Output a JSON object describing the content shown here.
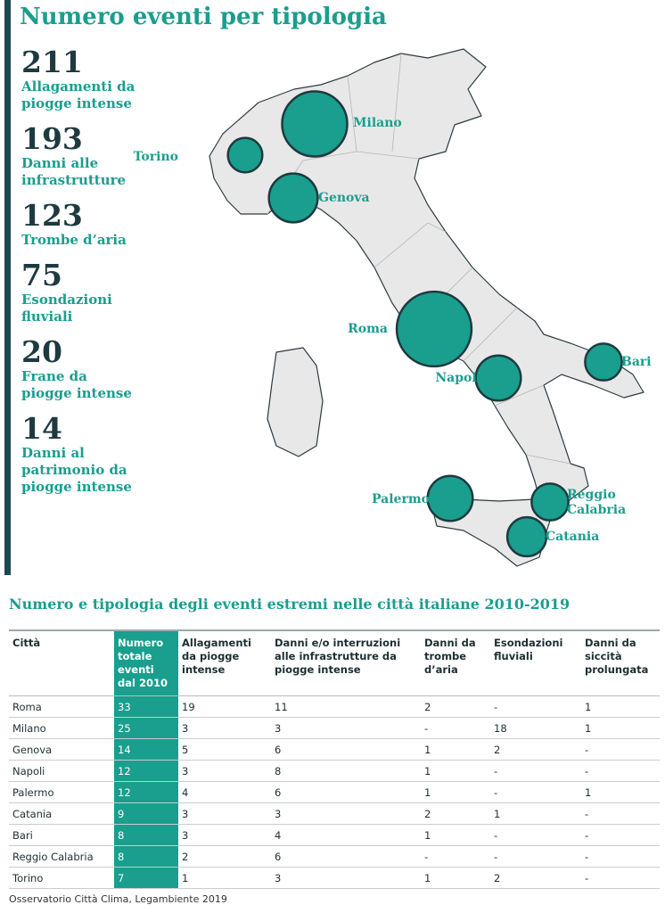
{
  "title": "Numero eventi per tipologia",
  "stats": [
    {
      "value": 211,
      "label": "Allagamenti da piogge intense"
    },
    {
      "value": 193,
      "label": "Danni alle infrastrutture"
    },
    {
      "value": 123,
      "label": "Trombe d’aria"
    },
    {
      "value": 75,
      "label": "Esondazioni fluviali"
    },
    {
      "value": 20,
      "label": "Frane da piogge intense"
    },
    {
      "value": 14,
      "label": "Danni al patrimonio da piogge intense"
    }
  ],
  "map": {
    "cities": [
      "Milano",
      "Torino",
      "Genova",
      "Roma",
      "Napoli",
      "Bari",
      "Palermo",
      "Reggio Calabria",
      "Catania"
    ]
  },
  "table": {
    "title": "Numero e tipologia degli eventi estremi nelle città italiane 2010-2019",
    "header": [
      "Città",
      "Numero totale eventi dal 2010",
      "Allagamenti da piogge intense",
      "Danni e/o interruzioni alle infrastrutture da piogge intense",
      "Danni da trombe d’aria",
      "Esondazioni fluviali",
      "Danni da siccità prolungata"
    ],
    "rows": [
      [
        "Roma",
        33,
        19,
        11,
        2,
        "-",
        1
      ],
      [
        "Milano",
        25,
        3,
        3,
        "-",
        18,
        1
      ],
      [
        "Genova",
        14,
        5,
        6,
        1,
        2,
        "-"
      ],
      [
        "Napoli",
        12,
        3,
        8,
        1,
        "-",
        "-"
      ],
      [
        "Palermo",
        12,
        4,
        6,
        1,
        "-",
        1
      ],
      [
        "Catania",
        9,
        3,
        3,
        2,
        1,
        "-"
      ],
      [
        "Bari",
        8,
        3,
        4,
        1,
        "-",
        "-"
      ],
      [
        "Reggio Calabria",
        8,
        2,
        6,
        "-",
        "-",
        "-"
      ],
      [
        "Torino",
        7,
        1,
        3,
        1,
        2,
        "-"
      ]
    ]
  },
  "source": "Osservatorio Città Clima, Legambiente 2019"
}
